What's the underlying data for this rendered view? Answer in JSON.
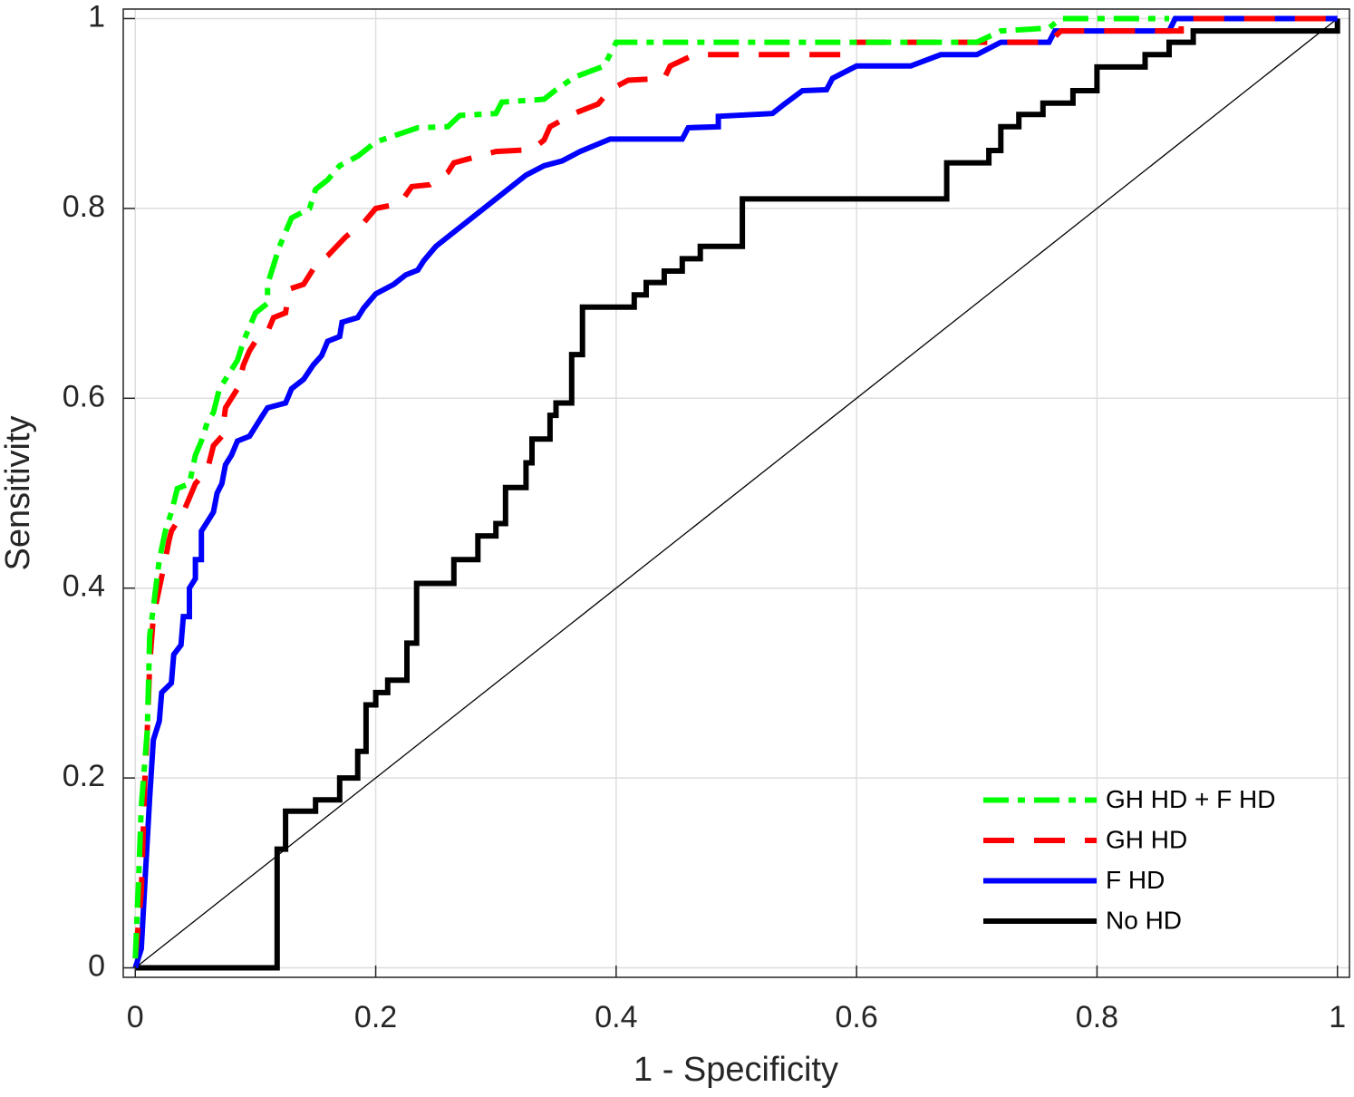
{
  "chart_data": {
    "type": "line",
    "xlabel": "1 - Specificity",
    "ylabel": "Sensitivity",
    "xlim": [
      -0.01,
      1.01
    ],
    "ylim": [
      -0.01,
      1.01
    ],
    "xticks": [
      0,
      0.2,
      0.4,
      0.6,
      0.8,
      1
    ],
    "yticks": [
      0,
      0.2,
      0.4,
      0.6,
      0.8,
      1
    ],
    "grid": true,
    "legend": "lower right",
    "series": [
      {
        "name": "GH HD + F HD",
        "color": "#00ff00",
        "style": "dashdot",
        "x": [
          0,
          0.003,
          0.005,
          0.01,
          0.012,
          0.015,
          0.02,
          0.025,
          0.03,
          0.035,
          0.045,
          0.05,
          0.055,
          0.06,
          0.065,
          0.07,
          0.075,
          0.085,
          0.09,
          0.1,
          0.11,
          0.11,
          0.115,
          0.12,
          0.13,
          0.145,
          0.15,
          0.16,
          0.17,
          0.185,
          0.2,
          0.235,
          0.26,
          0.27,
          0.3,
          0.305,
          0.34,
          0.35,
          0.365,
          0.39,
          0.4,
          0.7,
          0.72,
          0.76,
          0.77,
          0.86
        ],
        "values": [
          0.01,
          0.1,
          0.17,
          0.25,
          0.35,
          0.38,
          0.43,
          0.46,
          0.48,
          0.505,
          0.51,
          0.54,
          0.555,
          0.575,
          0.585,
          0.61,
          0.62,
          0.64,
          0.66,
          0.69,
          0.7,
          0.72,
          0.74,
          0.76,
          0.79,
          0.8,
          0.82,
          0.83,
          0.845,
          0.855,
          0.87,
          0.885,
          0.886,
          0.898,
          0.9,
          0.912,
          0.915,
          0.925,
          0.938,
          0.95,
          0.975,
          0.975,
          0.987,
          0.99,
          1,
          1
        ]
      },
      {
        "name": "GH HD",
        "color": "#ff0000",
        "style": "dashed",
        "x": [
          0,
          0.005,
          0.008,
          0.01,
          0.012,
          0.015,
          0.02,
          0.025,
          0.028,
          0.03,
          0.04,
          0.05,
          0.06,
          0.065,
          0.072,
          0.075,
          0.085,
          0.09,
          0.095,
          0.1,
          0.11,
          0.115,
          0.125,
          0.128,
          0.14,
          0.15,
          0.16,
          0.175,
          0.19,
          0.2,
          0.22,
          0.23,
          0.245,
          0.26,
          0.265,
          0.3,
          0.33,
          0.34,
          0.345,
          0.365,
          0.385,
          0.395,
          0.41,
          0.44,
          0.445,
          0.465,
          0.59,
          0.6,
          0.76,
          0.77,
          0.87,
          0.87,
          1
        ],
        "values": [
          0.01,
          0.08,
          0.2,
          0.25,
          0.32,
          0.37,
          0.4,
          0.43,
          0.45,
          0.46,
          0.48,
          0.51,
          0.525,
          0.55,
          0.56,
          0.59,
          0.61,
          0.635,
          0.65,
          0.66,
          0.67,
          0.685,
          0.69,
          0.715,
          0.72,
          0.74,
          0.75,
          0.77,
          0.785,
          0.8,
          0.805,
          0.823,
          0.825,
          0.838,
          0.848,
          0.86,
          0.862,
          0.872,
          0.886,
          0.9,
          0.91,
          0.925,
          0.935,
          0.937,
          0.95,
          0.962,
          0.962,
          0.975,
          0.975,
          0.987,
          0.987,
          1,
          1
        ]
      },
      {
        "name": "F HD",
        "color": "#0000ff",
        "style": "solid",
        "x": [
          0,
          0.005,
          0.008,
          0.012,
          0.015,
          0.02,
          0.022,
          0.03,
          0.032,
          0.038,
          0.04,
          0.045,
          0.045,
          0.05,
          0.05,
          0.055,
          0.055,
          0.06,
          0.065,
          0.068,
          0.072,
          0.075,
          0.08,
          0.085,
          0.095,
          0.1,
          0.105,
          0.11,
          0.125,
          0.13,
          0.14,
          0.148,
          0.155,
          0.16,
          0.17,
          0.172,
          0.185,
          0.19,
          0.2,
          0.215,
          0.225,
          0.235,
          0.24,
          0.25,
          0.26,
          0.275,
          0.29,
          0.3,
          0.31,
          0.325,
          0.34,
          0.355,
          0.37,
          0.395,
          0.455,
          0.46,
          0.485,
          0.485,
          0.53,
          0.54,
          0.555,
          0.575,
          0.58,
          0.6,
          0.645,
          0.67,
          0.7,
          0.72,
          0.76,
          0.765,
          0.86,
          0.865,
          1
        ],
        "values": [
          0,
          0.02,
          0.09,
          0.18,
          0.24,
          0.26,
          0.29,
          0.3,
          0.33,
          0.34,
          0.37,
          0.37,
          0.4,
          0.41,
          0.43,
          0.43,
          0.46,
          0.47,
          0.48,
          0.5,
          0.51,
          0.53,
          0.54,
          0.555,
          0.56,
          0.57,
          0.58,
          0.59,
          0.595,
          0.61,
          0.62,
          0.635,
          0.645,
          0.66,
          0.665,
          0.68,
          0.685,
          0.695,
          0.71,
          0.72,
          0.73,
          0.735,
          0.745,
          0.76,
          0.77,
          0.785,
          0.8,
          0.81,
          0.82,
          0.835,
          0.845,
          0.85,
          0.86,
          0.873,
          0.873,
          0.885,
          0.886,
          0.897,
          0.9,
          0.91,
          0.924,
          0.925,
          0.937,
          0.95,
          0.95,
          0.962,
          0.962,
          0.975,
          0.975,
          0.987,
          0.987,
          1,
          1
        ]
      },
      {
        "name": "No HD",
        "color": "#000000",
        "style": "solid",
        "x": [
          0,
          0.118,
          0.118,
          0.125,
          0.125,
          0.15,
          0.15,
          0.17,
          0.17,
          0.185,
          0.185,
          0.192,
          0.192,
          0.2,
          0.2,
          0.21,
          0.21,
          0.226,
          0.226,
          0.234,
          0.234,
          0.265,
          0.265,
          0.285,
          0.285,
          0.3,
          0.3,
          0.308,
          0.308,
          0.325,
          0.325,
          0.33,
          0.33,
          0.345,
          0.345,
          0.35,
          0.35,
          0.363,
          0.363,
          0.372,
          0.372,
          0.415,
          0.415,
          0.425,
          0.425,
          0.44,
          0.44,
          0.455,
          0.455,
          0.47,
          0.47,
          0.505,
          0.505,
          0.675,
          0.675,
          0.71,
          0.71,
          0.72,
          0.72,
          0.735,
          0.735,
          0.755,
          0.755,
          0.78,
          0.78,
          0.8,
          0.8,
          0.84,
          0.84,
          0.86,
          0.86,
          0.88,
          0.88,
          1,
          1
        ],
        "values": [
          0,
          0,
          0.125,
          0.125,
          0.165,
          0.165,
          0.177,
          0.177,
          0.2,
          0.2,
          0.228,
          0.228,
          0.277,
          0.277,
          0.29,
          0.29,
          0.303,
          0.303,
          0.342,
          0.342,
          0.405,
          0.405,
          0.43,
          0.43,
          0.455,
          0.455,
          0.468,
          0.468,
          0.506,
          0.506,
          0.532,
          0.532,
          0.557,
          0.557,
          0.582,
          0.582,
          0.595,
          0.595,
          0.646,
          0.646,
          0.696,
          0.696,
          0.709,
          0.709,
          0.722,
          0.722,
          0.734,
          0.734,
          0.747,
          0.747,
          0.76,
          0.76,
          0.81,
          0.81,
          0.848,
          0.848,
          0.861,
          0.861,
          0.886,
          0.886,
          0.899,
          0.899,
          0.911,
          0.911,
          0.924,
          0.924,
          0.949,
          0.949,
          0.962,
          0.962,
          0.975,
          0.975,
          0.987,
          0.987,
          1
        ]
      },
      {
        "color": "#000000",
        "style": "thin",
        "x": [
          0,
          1
        ],
        "values": [
          0,
          1
        ]
      }
    ]
  }
}
